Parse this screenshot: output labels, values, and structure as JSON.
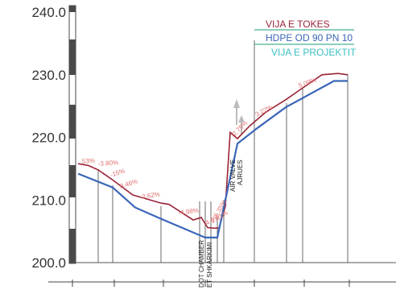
{
  "y_axis": {
    "ticks": [
      {
        "value": 240,
        "label": "240.0"
      },
      {
        "value": 230,
        "label": "230.0"
      },
      {
        "value": 220,
        "label": "220.0"
      },
      {
        "value": 210,
        "label": "210.0"
      },
      {
        "value": 200,
        "label": "200.0"
      }
    ]
  },
  "legend": {
    "ground": "VIJA E TOKES",
    "pipe": "HDPE OD 90 PN 10",
    "design": "VIJA E PROJEKTIT"
  },
  "colors": {
    "ground": "#9b2335",
    "pipe": "#3a66b8",
    "design": "#3dbfc4",
    "legend_box": "#1a9e7a",
    "slope_label": "#e07070",
    "axis_text": "#333333",
    "scale_bar": "#4a4a4a"
  },
  "slope_labels": [
    "53%",
    "-3.80%",
    "-15%",
    "8.46%",
    "-3.62%",
    "-4.98%",
    "-4.6%",
    "2.61%",
    "5.35%",
    "-2.75%",
    "3.22%",
    "5.09%"
  ],
  "features": {
    "air_valve": [
      "AIR VALVE",
      "AJRUES"
    ],
    "chamber": [
      "DOT CHAMBER",
      "ET SHKARKIMI"
    ]
  },
  "chart_data": {
    "type": "line",
    "ylim": [
      200,
      240
    ],
    "series": [
      {
        "name": "VIJA E TOKES",
        "x": [
          97,
          110,
          122,
          140,
          165,
          200,
          210,
          240,
          250,
          258,
          265,
          272,
          280,
          286,
          295,
          310,
          330,
          345,
          355,
          375,
          400,
          420,
          432
        ],
        "values": [
          215.8,
          215.5,
          214.8,
          213.2,
          210.8,
          209.5,
          209.3,
          206.8,
          207.2,
          205.6,
          205.5,
          205.5,
          209.0,
          220.8,
          219.8,
          221.8,
          224.0,
          225.2,
          226.0,
          227.8,
          230.0,
          230.2,
          230.0
        ]
      },
      {
        "name": "HDPE OD 90 PN 10",
        "x": [
          97,
          140,
          168,
          200,
          255,
          270,
          285,
          295,
          320,
          355,
          415,
          432
        ],
        "values": [
          214.2,
          212.0,
          208.8,
          207.0,
          204.0,
          204.0,
          213.0,
          219.0,
          221.5,
          224.8,
          229.0,
          229.0
        ]
      }
    ]
  }
}
